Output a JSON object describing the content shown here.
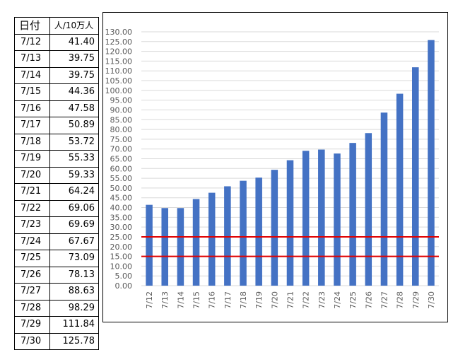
{
  "table": {
    "header_date": "日付",
    "header_value": "人/10万人",
    "rows": [
      {
        "date": "7/12",
        "value": "41.40"
      },
      {
        "date": "7/13",
        "value": "39.75"
      },
      {
        "date": "7/14",
        "value": "39.75"
      },
      {
        "date": "7/15",
        "value": "44.36"
      },
      {
        "date": "7/16",
        "value": "47.58"
      },
      {
        "date": "7/17",
        "value": "50.89"
      },
      {
        "date": "7/18",
        "value": "53.72"
      },
      {
        "date": "7/19",
        "value": "55.33"
      },
      {
        "date": "7/20",
        "value": "59.33"
      },
      {
        "date": "7/21",
        "value": "64.24"
      },
      {
        "date": "7/22",
        "value": "69.06"
      },
      {
        "date": "7/23",
        "value": "69.69"
      },
      {
        "date": "7/24",
        "value": "67.67"
      },
      {
        "date": "7/25",
        "value": "73.09"
      },
      {
        "date": "7/26",
        "value": "78.13"
      },
      {
        "date": "7/27",
        "value": "88.63"
      },
      {
        "date": "7/28",
        "value": "98.29"
      },
      {
        "date": "7/29",
        "value": "111.84"
      },
      {
        "date": "7/30",
        "value": "125.78"
      }
    ]
  },
  "chart_data": {
    "type": "bar",
    "categories": [
      "7/12",
      "7/13",
      "7/14",
      "7/15",
      "7/16",
      "7/17",
      "7/18",
      "7/19",
      "7/20",
      "7/21",
      "7/22",
      "7/23",
      "7/24",
      "7/25",
      "7/26",
      "7/27",
      "7/28",
      "7/29",
      "7/30"
    ],
    "values": [
      41.4,
      39.75,
      39.75,
      44.36,
      47.58,
      50.89,
      53.72,
      55.33,
      59.33,
      64.24,
      69.06,
      69.69,
      67.67,
      73.09,
      78.13,
      88.63,
      98.29,
      111.84,
      125.78
    ],
    "ylim": [
      0,
      130
    ],
    "ytick_step": 5,
    "ytick_format": "0.00",
    "grid": true,
    "reference_lines": [
      25,
      15
    ],
    "bar_color": "#4472C4",
    "reference_line_color": "#E00000",
    "grid_color": "#D9D9D9",
    "tick_color": "#595959"
  }
}
